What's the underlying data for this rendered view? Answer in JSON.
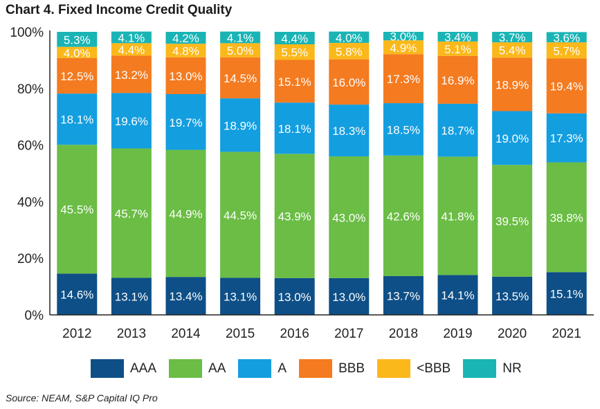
{
  "title": "Chart 4. Fixed Income Credit Quality",
  "source": "Source: NEAM, S&P Capital IQ Pro",
  "chart_data": {
    "type": "bar",
    "stacked": true,
    "title": "Chart 4. Fixed Income Credit Quality",
    "xlabel": "",
    "ylabel": "",
    "ylim": [
      0,
      100
    ],
    "yticks": [
      "0%",
      "20%",
      "40%",
      "60%",
      "80%",
      "100%"
    ],
    "grid": false,
    "legend_position": "bottom",
    "categories": [
      "2012",
      "2013",
      "2014",
      "2015",
      "2016",
      "2017",
      "2018",
      "2019",
      "2020",
      "2021"
    ],
    "series": [
      {
        "name": "AAA",
        "color": "#0e4f87",
        "values": [
          14.6,
          13.1,
          13.4,
          13.1,
          13.0,
          13.0,
          13.7,
          14.1,
          13.5,
          15.1
        ]
      },
      {
        "name": "AA",
        "color": "#6bbd45",
        "values": [
          45.5,
          45.7,
          44.9,
          44.5,
          43.9,
          43.0,
          42.6,
          41.8,
          39.5,
          38.8
        ]
      },
      {
        "name": "A",
        "color": "#139ee0",
        "values": [
          18.1,
          19.6,
          19.7,
          18.9,
          18.1,
          18.3,
          18.5,
          18.7,
          19.0,
          17.3
        ]
      },
      {
        "name": "BBB",
        "color": "#f47b20",
        "values": [
          12.5,
          13.2,
          13.0,
          14.5,
          15.1,
          16.0,
          17.3,
          16.9,
          18.9,
          19.4
        ]
      },
      {
        "name": "<BBB",
        "color": "#fbb81b",
        "values": [
          4.0,
          4.4,
          4.8,
          5.0,
          5.5,
          5.8,
          4.9,
          5.1,
          5.4,
          5.7
        ]
      },
      {
        "name": "NR",
        "color": "#1ab4b5",
        "values": [
          5.3,
          4.1,
          4.2,
          4.1,
          4.4,
          4.0,
          3.0,
          3.4,
          3.7,
          3.6
        ]
      }
    ]
  }
}
